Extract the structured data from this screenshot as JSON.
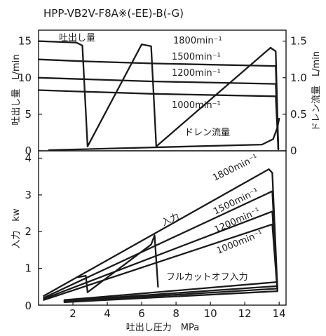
{
  "chart_data": {
    "type": "line",
    "title": "HPP-VB2V-F8A※(-EE)-B(-G)",
    "xlabel": "吐出し圧力　MPa",
    "xlim": [
      0,
      14.4
    ],
    "xticks": [
      0,
      2,
      4,
      6,
      8,
      10,
      12,
      14
    ],
    "grid": false,
    "panels": [
      {
        "name": "flow",
        "ylabel": "吐出し量　L/min",
        "ylim": [
          0,
          16.5
        ],
        "yticks": [
          0,
          5,
          10,
          15
        ],
        "y2label": "ドレン流量　L/min",
        "y2ticks": [
          0,
          0.5,
          1.0,
          1.5
        ],
        "y2tick_labels": [
          "0",
          "0.5",
          "1.0",
          "1.5"
        ],
        "y2_units_per_y": 0.1,
        "annotations": [
          "吐出し量",
          "ドレン流量"
        ],
        "series": [
          {
            "name": "1800min⁻¹",
            "x": [
              0,
              2.2,
              2.55,
              2.85,
              6.0,
              6.55,
              6.85,
              13.5,
              13.8,
              13.95
            ],
            "y": [
              15.0,
              14.8,
              14.4,
              0.6,
              14.55,
              14.3,
              0.6,
              14.1,
              13.6,
              0.2
            ]
          },
          {
            "name": "1500min⁻¹",
            "x": [
              0,
              2.55,
              6.55,
              13.8,
              13.95
            ],
            "y": [
              12.5,
              12.25,
              11.95,
              11.6,
              0.2
            ]
          },
          {
            "name": "1200min⁻¹",
            "x": [
              0,
              2.55,
              6.55,
              13.8,
              13.95
            ],
            "y": [
              10.0,
              9.8,
              9.5,
              9.15,
              0.2
            ]
          },
          {
            "name": "1000min⁻¹",
            "x": [
              0,
              2.55,
              6.55,
              13.8,
              13.95
            ],
            "y": [
              8.3,
              8.1,
              7.8,
              7.45,
              0.2
            ]
          },
          {
            "name": "ドレン流量",
            "x": [
              0.6,
              13.0,
              13.65,
              13.9,
              14.0
            ],
            "y": [
              0.1,
              0.85,
              1.6,
              3.2,
              4.4
            ]
          }
        ]
      },
      {
        "name": "power",
        "ylabel": "入力　kw",
        "ylim": [
          0,
          4.2
        ],
        "yticks": [
          0,
          1,
          2,
          3,
          4
        ],
        "annotations": [
          "入力",
          "フルカットオフ入力"
        ],
        "series": [
          {
            "name": "1800min⁻¹",
            "x": [
              0.3,
              13.4,
              13.6,
              13.9
            ],
            "y": [
              0.25,
              3.7,
              3.6,
              0.45
            ]
          },
          {
            "name": "1500min⁻¹",
            "x": [
              0.3,
              13.6,
              13.9
            ],
            "y": [
              0.2,
              3.1,
              0.42
            ]
          },
          {
            "name": "1200min⁻¹",
            "x": [
              0.3,
              13.6,
              13.9
            ],
            "y": [
              0.17,
              2.55,
              0.4
            ]
          },
          {
            "name": "1000min⁻¹",
            "x": [
              0.3,
              13.6,
              13.9
            ],
            "y": [
              0.14,
              2.2,
              0.38
            ]
          },
          {
            "name": "cutoff 1800",
            "x": [
              2.3,
              2.75,
              2.85,
              6.55,
              6.75,
              6.95
            ],
            "y": [
              0.76,
              0.8,
              0.35,
              1.65,
              1.9,
              0.5
            ]
          },
          {
            "name": "フルカットオフ入力 1800",
            "x": [
              1.5,
              13.9
            ],
            "y": [
              0.14,
              0.63
            ]
          },
          {
            "name": "フルカットオフ入力 1500",
            "x": [
              1.5,
              13.9
            ],
            "y": [
              0.12,
              0.52
            ]
          },
          {
            "name": "フルカットオフ入力 1200",
            "x": [
              1.5,
              13.9
            ],
            "y": [
              0.1,
              0.45
            ]
          },
          {
            "name": "フルカットオフ入力 1000",
            "x": [
              1.5,
              13.9
            ],
            "y": [
              0.08,
              0.38
            ]
          }
        ]
      }
    ]
  }
}
